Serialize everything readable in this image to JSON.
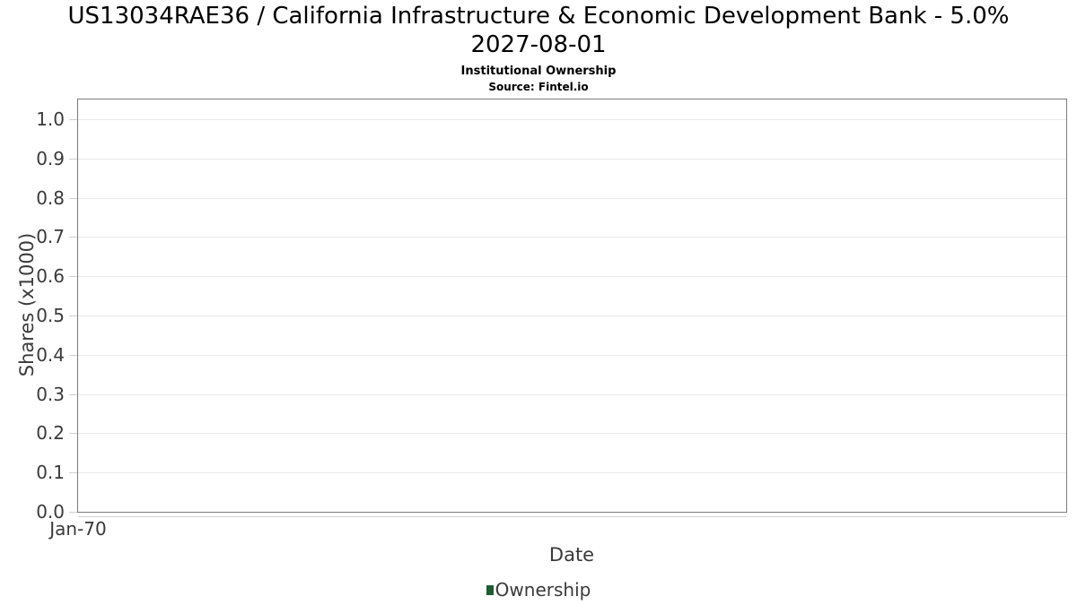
{
  "header": {
    "title_line1": "US13034RAE36 / California Infrastructure & Economic Development Bank - 5.0%",
    "title_line2": "2027-08-01",
    "subtitle": "Institutional Ownership",
    "source": "Source: Fintel.io"
  },
  "chart_data": {
    "type": "line",
    "title": "US13034RAE36 / California Infrastructure & Economic Development Bank - 5.0% 2027-08-01",
    "subtitle": "Institutional Ownership",
    "source": "Source: Fintel.io",
    "xlabel": "Date",
    "ylabel": "Shares (x1000)",
    "x_ticks": [
      "Jan-70"
    ],
    "y_ticks": [
      0.0,
      0.1,
      0.2,
      0.3,
      0.4,
      0.5,
      0.6,
      0.7,
      0.8,
      0.9,
      1.0
    ],
    "ylim": [
      0,
      1.05
    ],
    "grid": true,
    "legend_position": "bottom-center",
    "series": [
      {
        "name": "Ownership",
        "color": "#1e5a32",
        "values": []
      }
    ]
  }
}
